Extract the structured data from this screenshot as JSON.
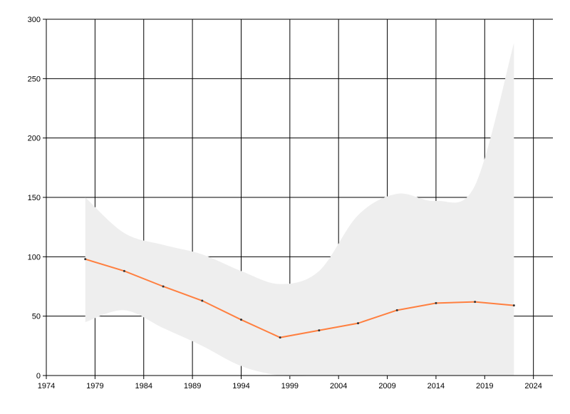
{
  "chart_data": {
    "type": "line",
    "x": [
      1978,
      1982,
      1986,
      1990,
      1994,
      1998,
      2002,
      2006,
      2010,
      2014,
      2018,
      2022
    ],
    "values": [
      98,
      88,
      75,
      63,
      47,
      32,
      38,
      44,
      55,
      61,
      62,
      59
    ],
    "upper": [
      150,
      120,
      110,
      102,
      88,
      77,
      88,
      135,
      153,
      147,
      160,
      280
    ],
    "lower": [
      45,
      55,
      40,
      25,
      8,
      0,
      0,
      0,
      0,
      0,
      0,
      0
    ],
    "color": "#ff7f3f",
    "band_color": "#eeeeee",
    "marker_color": "#333333",
    "xlim": [
      1974,
      2026
    ],
    "xticks": [
      1974,
      1979,
      1984,
      1989,
      1994,
      1999,
      2004,
      2009,
      2014,
      2019,
      2024
    ],
    "ylim": [
      0,
      300
    ],
    "yticks": [
      0,
      50,
      100,
      150,
      200,
      250,
      300
    ],
    "grid": true
  }
}
